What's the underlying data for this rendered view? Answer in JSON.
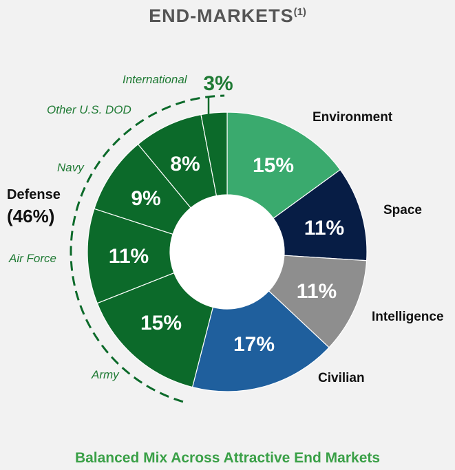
{
  "title": {
    "text": "END-MARKETS",
    "superscript": "(1)"
  },
  "footer": "Balanced Mix Across Attractive End Markets",
  "colors": {
    "environment": "#3aaa6e",
    "space": "#071d45",
    "intelligence": "#8e8e8e",
    "civilian": "#1f5f9d",
    "defense": "#0c6a2a",
    "defense_text": "#1f7a34",
    "hole": "#ffffff"
  },
  "chart_data": {
    "type": "pie",
    "variant": "donut",
    "title": "END-MARKETS",
    "slices": [
      {
        "label": "Environment",
        "value": 15,
        "display": "15%",
        "color": "#3aaa6e",
        "group": ""
      },
      {
        "label": "Space",
        "value": 11,
        "display": "11%",
        "color": "#071d45",
        "group": ""
      },
      {
        "label": "Intelligence",
        "value": 11,
        "display": "11%",
        "color": "#8e8e8e",
        "group": ""
      },
      {
        "label": "Civilian",
        "value": 17,
        "display": "17%",
        "color": "#1f5f9d",
        "group": ""
      },
      {
        "label": "Army",
        "value": 15,
        "display": "15%",
        "color": "#0c6a2a",
        "group": "Defense"
      },
      {
        "label": "Air Force",
        "value": 11,
        "display": "11%",
        "color": "#0c6a2a",
        "group": "Defense"
      },
      {
        "label": "Navy",
        "value": 9,
        "display": "9%",
        "color": "#0c6a2a",
        "group": "Defense"
      },
      {
        "label": "Other U.S. DOD",
        "value": 8,
        "display": "8%",
        "color": "#0c6a2a",
        "group": "Defense"
      },
      {
        "label": "International",
        "value": 3,
        "display": "3%",
        "color": "#0c6a2a",
        "group": "Defense"
      }
    ],
    "group_label": {
      "name": "Defense",
      "total": "(46%)"
    }
  }
}
